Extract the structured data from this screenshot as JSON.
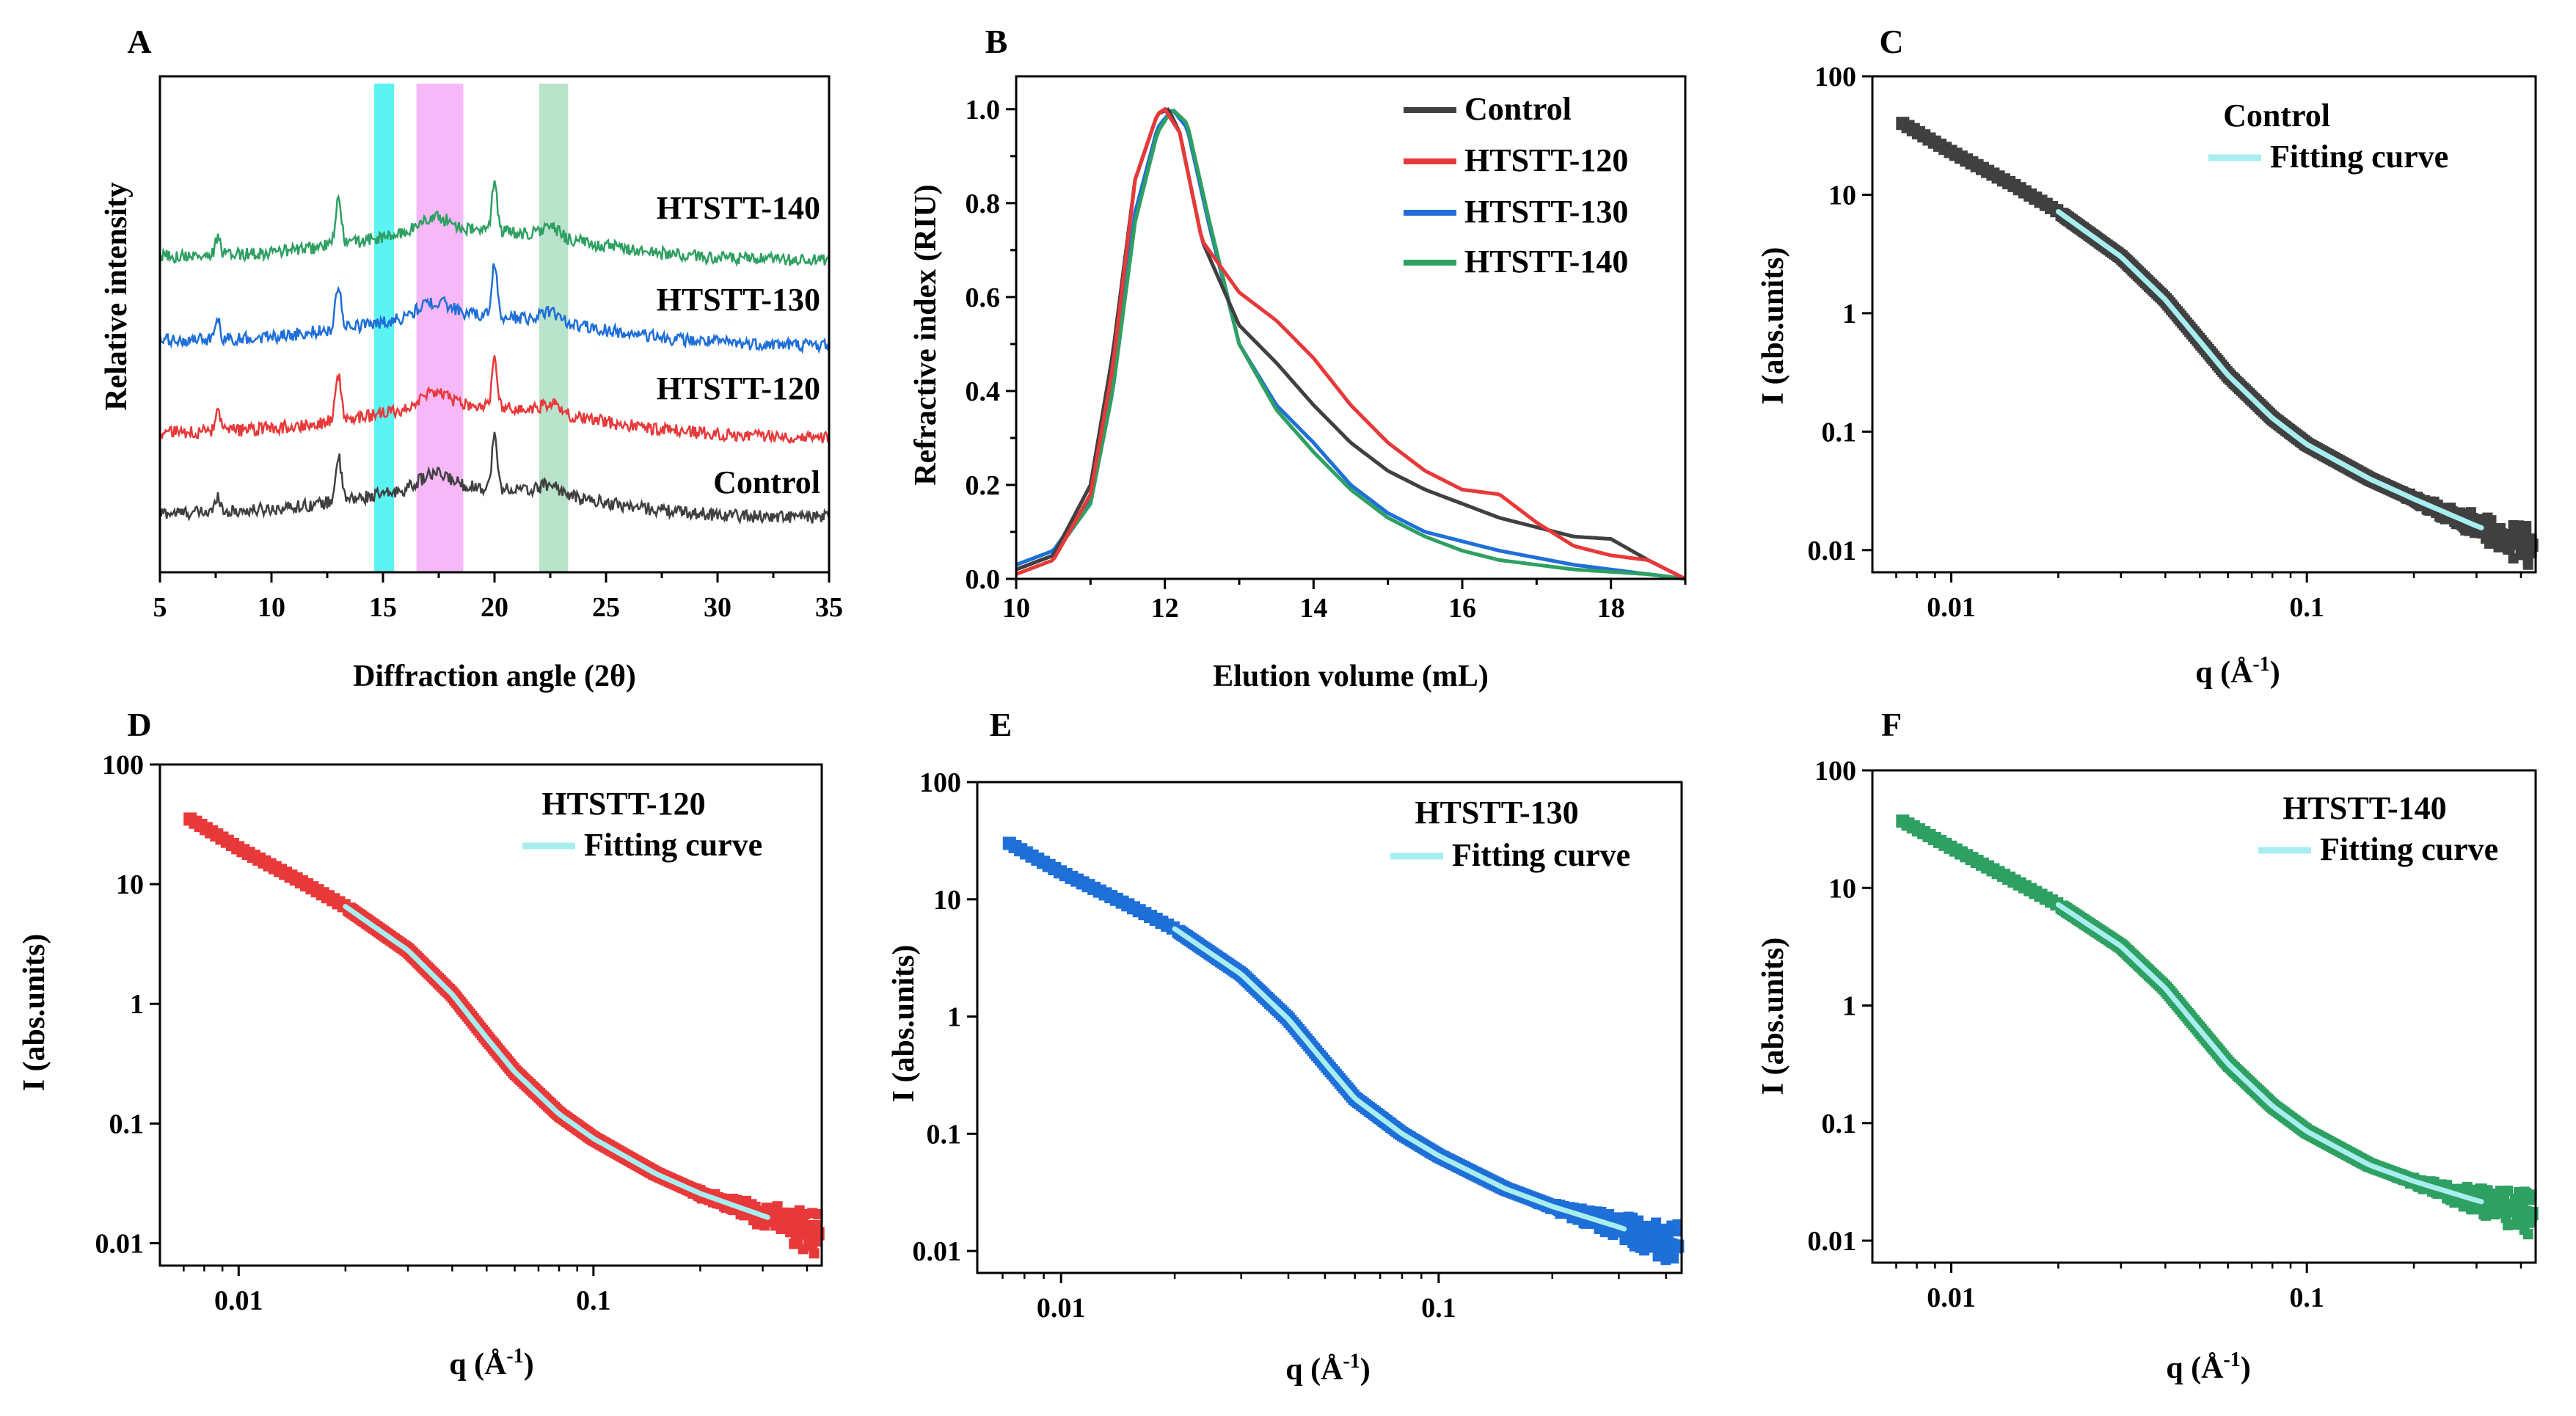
{
  "colors": {
    "control": "#404040",
    "htstt120": "#e8393a",
    "htstt130": "#1f6fd8",
    "htstt140": "#2ea062",
    "fit": "#a8eef0",
    "cyan_band": "#33f0f0",
    "pink_band": "#f5a6f5",
    "green_band": "#a8dcbe"
  },
  "chart_data": [
    {
      "id": "A",
      "panel": "A",
      "type": "line",
      "xlabel": "Diffraction angle (2θ)",
      "ylabel": "Relative intensity",
      "xlim": [
        5,
        35
      ],
      "xticks": [
        "5",
        "10",
        "15",
        "20",
        "25",
        "30",
        "35"
      ],
      "xtick_values": [
        5,
        10,
        15,
        20,
        25,
        30,
        35
      ],
      "bands": [
        {
          "name": "cyan",
          "from": 14.6,
          "to": 15.5
        },
        {
          "name": "pink",
          "from": 16.5,
          "to": 18.6
        },
        {
          "name": "green",
          "from": 22.0,
          "to": 23.3
        }
      ],
      "series": [
        {
          "name": "Control",
          "offset": 0.0
        },
        {
          "name": "HTSTT-120",
          "offset": 1.0
        },
        {
          "name": "HTSTT-130",
          "offset": 2.0
        },
        {
          "name": "HTSTT-140",
          "offset": 3.0
        }
      ],
      "peaks": [
        {
          "x": 7.6,
          "h": 0.22,
          "w": 0.15
        },
        {
          "x": 13.0,
          "h": 0.55,
          "w": 0.18
        },
        {
          "x": 17.3,
          "h": 0.18,
          "w": 1.0
        },
        {
          "x": 20.0,
          "h": 0.65,
          "w": 0.16
        },
        {
          "x": 22.5,
          "h": 0.12,
          "w": 0.6
        }
      ],
      "labels": [
        "Control",
        "HTSTT-120",
        "HTSTT-130",
        "HTSTT-140"
      ]
    },
    {
      "id": "B",
      "panel": "B",
      "type": "line",
      "xlabel": "Elution volume (mL)",
      "ylabel": "Refractive index (RIU)",
      "xlim": [
        10,
        19
      ],
      "ylim": [
        0,
        1.07
      ],
      "xticks": [
        "10",
        "12",
        "14",
        "16",
        "18"
      ],
      "xtick_values": [
        10,
        12,
        14,
        16,
        18
      ],
      "yticks": [
        "0.0",
        "0.2",
        "0.4",
        "0.6",
        "0.8",
        "1.0"
      ],
      "ytick_values": [
        0,
        0.2,
        0.4,
        0.6,
        0.8,
        1.0
      ],
      "series": [
        {
          "name": "Control",
          "x": [
            10,
            10.5,
            11,
            11.3,
            11.6,
            11.9,
            12.05,
            12.2,
            12.5,
            13,
            13.5,
            14,
            14.5,
            15,
            15.5,
            16,
            16.5,
            17,
            17.5,
            18,
            18.5,
            19
          ],
          "y": [
            0.02,
            0.05,
            0.2,
            0.48,
            0.85,
            0.99,
            1.0,
            0.95,
            0.72,
            0.54,
            0.46,
            0.37,
            0.29,
            0.23,
            0.19,
            0.16,
            0.13,
            0.11,
            0.09,
            0.085,
            0.04,
            0.0
          ]
        },
        {
          "name": "HTSTT-120",
          "x": [
            10,
            10.5,
            11,
            11.3,
            11.6,
            11.9,
            12.0,
            12.2,
            12.5,
            13,
            13.5,
            14,
            14.5,
            15,
            15.5,
            16,
            16.5,
            17,
            17.5,
            18,
            18.5,
            19
          ],
          "y": [
            0.01,
            0.04,
            0.18,
            0.45,
            0.85,
            0.99,
            1.0,
            0.95,
            0.72,
            0.61,
            0.55,
            0.47,
            0.37,
            0.29,
            0.23,
            0.19,
            0.18,
            0.12,
            0.07,
            0.05,
            0.04,
            0.0
          ]
        },
        {
          "name": "HTSTT-130",
          "x": [
            10,
            10.5,
            11,
            11.3,
            11.6,
            11.9,
            12.1,
            12.3,
            12.6,
            13,
            13.5,
            14,
            14.5,
            15,
            15.5,
            16,
            16.5,
            17,
            17.5,
            18,
            18.5,
            19
          ],
          "y": [
            0.03,
            0.06,
            0.17,
            0.42,
            0.78,
            0.96,
            1.0,
            0.96,
            0.75,
            0.5,
            0.37,
            0.29,
            0.2,
            0.14,
            0.1,
            0.08,
            0.06,
            0.045,
            0.03,
            0.02,
            0.01,
            0.0
          ]
        },
        {
          "name": "HTSTT-140",
          "x": [
            10,
            10.5,
            11,
            11.3,
            11.6,
            11.9,
            12.1,
            12.3,
            12.6,
            13,
            13.5,
            14,
            14.5,
            15,
            15.5,
            16,
            16.5,
            17,
            17.5,
            18,
            18.5,
            19
          ],
          "y": [
            0.02,
            0.05,
            0.16,
            0.4,
            0.76,
            0.95,
            1.0,
            0.97,
            0.76,
            0.5,
            0.36,
            0.27,
            0.19,
            0.13,
            0.09,
            0.06,
            0.04,
            0.03,
            0.02,
            0.015,
            0.01,
            0.0
          ]
        }
      ],
      "legend": [
        "Control",
        "HTSTT-120",
        "HTSTT-130",
        "HTSTT-140"
      ]
    },
    {
      "id": "C",
      "panel": "C",
      "type": "scatter",
      "title": "Control",
      "legend": "Fitting curve",
      "xlabel": "q (Å",
      "xlabel_sup": "-1",
      "xlabel_end": ")",
      "ylabel": "I (abs.units)",
      "xscale": "log",
      "yscale": "log",
      "xlim": [
        0.006,
        0.44
      ],
      "ylim": [
        0.0065,
        100
      ],
      "xticks": [
        "0.01",
        "0.1"
      ],
      "xtick_values": [
        0.01,
        0.1
      ],
      "yticks": [
        "0.01",
        "0.1",
        "1",
        "10",
        "100"
      ],
      "ytick_values": [
        0.01,
        0.1,
        1,
        10,
        100
      ],
      "q": [
        0.0073,
        0.01,
        0.015,
        0.02,
        0.03,
        0.04,
        0.05,
        0.06,
        0.08,
        0.1,
        0.15,
        0.2,
        0.3,
        0.42
      ],
      "I": [
        40,
        23,
        12,
        7.2,
        3.0,
        1.3,
        0.58,
        0.3,
        0.13,
        0.078,
        0.04,
        0.027,
        0.016,
        0.011
      ],
      "fit_range": [
        0.02,
        0.31
      ]
    },
    {
      "id": "D",
      "panel": "D",
      "type": "scatter",
      "title": "HTSTT-120",
      "legend": "Fitting curve",
      "xlabel": "q (Å",
      "xlabel_sup": "-1",
      "xlabel_end": ")",
      "ylabel": "I (abs.units)",
      "xscale": "log",
      "yscale": "log",
      "xlim": [
        0.006,
        0.44
      ],
      "ylim": [
        0.0065,
        100
      ],
      "xticks": [
        "0.01",
        "0.1"
      ],
      "xtick_values": [
        0.01,
        0.1
      ],
      "yticks": [
        "0.01",
        "0.1",
        "1",
        "10",
        "100"
      ],
      "ytick_values": [
        0.01,
        0.1,
        1,
        10,
        100
      ],
      "q": [
        0.0073,
        0.01,
        0.015,
        0.02,
        0.03,
        0.04,
        0.05,
        0.06,
        0.08,
        0.1,
        0.15,
        0.2,
        0.3,
        0.42
      ],
      "I": [
        35,
        20,
        10.5,
        6.5,
        2.8,
        1.2,
        0.52,
        0.27,
        0.12,
        0.075,
        0.038,
        0.026,
        0.017,
        0.012
      ],
      "fit_range": [
        0.02,
        0.31
      ]
    },
    {
      "id": "E",
      "panel": "E",
      "type": "scatter",
      "title": "HTSTT-130",
      "legend": "Fitting curve",
      "xlabel": "q (Å",
      "xlabel_sup": "-1",
      "xlabel_end": ")",
      "ylabel": "I (abs.units)",
      "xscale": "log",
      "yscale": "log",
      "xlim": [
        0.006,
        0.44
      ],
      "ylim": [
        0.0065,
        100
      ],
      "xticks": [
        "0.01",
        "0.1"
      ],
      "xtick_values": [
        0.01,
        0.1
      ],
      "yticks": [
        "0.01",
        "0.1",
        "1",
        "10",
        "100"
      ],
      "ytick_values": [
        0.01,
        0.1,
        1,
        10,
        100
      ],
      "q": [
        0.0073,
        0.01,
        0.015,
        0.02,
        0.03,
        0.04,
        0.05,
        0.06,
        0.08,
        0.1,
        0.15,
        0.2,
        0.3,
        0.42
      ],
      "I": [
        30,
        17,
        9.0,
        5.6,
        2.3,
        0.95,
        0.4,
        0.2,
        0.1,
        0.065,
        0.034,
        0.024,
        0.016,
        0.011
      ],
      "fit_range": [
        0.02,
        0.31
      ]
    },
    {
      "id": "F",
      "panel": "F",
      "type": "scatter",
      "title": "HTSTT-140",
      "legend": "Fitting curve",
      "xlabel": "q (Å",
      "xlabel_sup": "-1",
      "xlabel_end": ")",
      "ylabel": "I (abs.units)",
      "xscale": "log",
      "yscale": "log",
      "xlim": [
        0.006,
        0.44
      ],
      "ylim": [
        0.0065,
        100
      ],
      "xticks": [
        "0.01",
        "0.1"
      ],
      "xtick_values": [
        0.01,
        0.1
      ],
      "yticks": [
        "0.01",
        "0.1",
        "1",
        "10",
        "100"
      ],
      "ytick_values": [
        0.01,
        0.1,
        1,
        10,
        100
      ],
      "q": [
        0.0073,
        0.01,
        0.015,
        0.02,
        0.03,
        0.04,
        0.05,
        0.06,
        0.08,
        0.1,
        0.15,
        0.2,
        0.3,
        0.42
      ],
      "I": [
        37,
        22,
        11.5,
        7.2,
        3.2,
        1.4,
        0.62,
        0.32,
        0.14,
        0.085,
        0.044,
        0.032,
        0.022,
        0.017
      ],
      "fit_range": [
        0.02,
        0.31
      ]
    }
  ]
}
